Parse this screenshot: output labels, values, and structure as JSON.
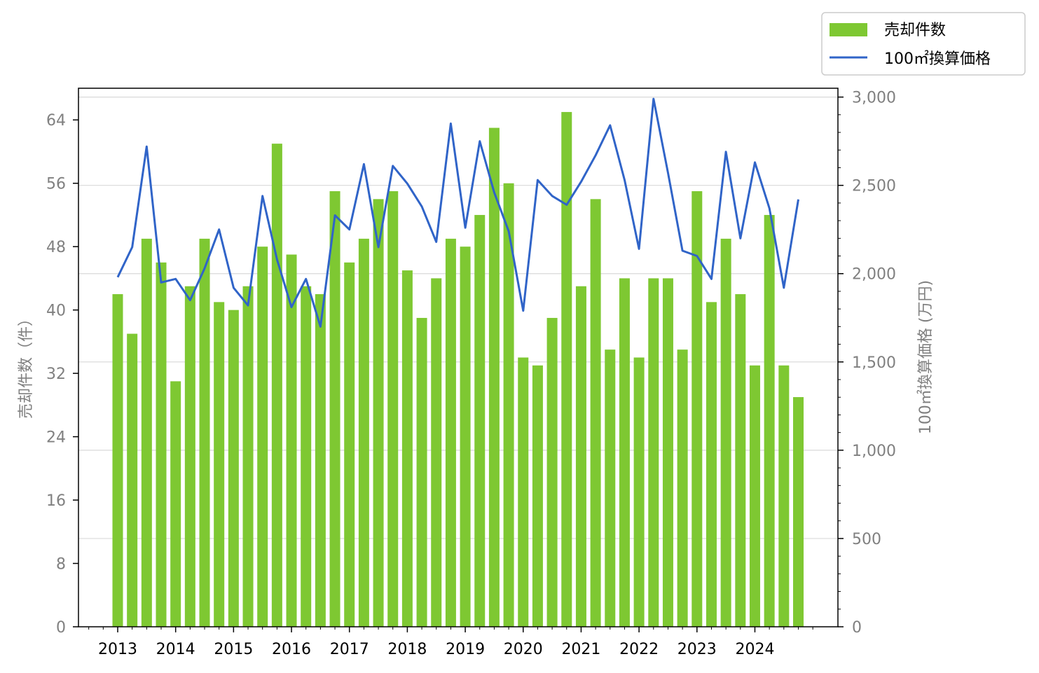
{
  "chart_data": {
    "type": "bar",
    "x_tick_labels": [
      "2013",
      "2014",
      "2015",
      "2016",
      "2017",
      "2018",
      "2019",
      "2020",
      "2021",
      "2022",
      "2023",
      "2024"
    ],
    "ylabel_left": "売却件数（件）",
    "ylabel_right": "100㎡換算価格 (万円)",
    "ylim_left": [
      0,
      68
    ],
    "ylim_right": [
      0,
      3050
    ],
    "yticks_left": [
      "0",
      "8",
      "16",
      "24",
      "32",
      "40",
      "48",
      "56",
      "64"
    ],
    "yticks_right": [
      "0",
      "500",
      "1,000",
      "1,500",
      "2,000",
      "2,500",
      "3,000"
    ],
    "grid": "horizontal (right axis)",
    "legend_position": "top-right, outside plot",
    "series": [
      {
        "name": "売却件数",
        "type": "bar",
        "axis": "left",
        "color": "#7ec832",
        "values": [
          42,
          37,
          49,
          46,
          31,
          43,
          49,
          41,
          40,
          43,
          48,
          61,
          47,
          43,
          42,
          55,
          46,
          49,
          54,
          55,
          45,
          39,
          44,
          49,
          48,
          52,
          63,
          56,
          34,
          33,
          39,
          65,
          43,
          54,
          35,
          44,
          34,
          44,
          44,
          35,
          55,
          41,
          49,
          42,
          33,
          52,
          33,
          29
        ]
      },
      {
        "name": "100㎡換算価格",
        "type": "line",
        "axis": "right",
        "color": "#3064c8",
        "values": [
          1980,
          2150,
          2720,
          1950,
          1970,
          1850,
          2030,
          2250,
          1920,
          1820,
          2440,
          2080,
          1810,
          1970,
          1700,
          2330,
          2250,
          2620,
          2150,
          2610,
          2510,
          2380,
          2180,
          2850,
          2260,
          2750,
          2460,
          2240,
          1790,
          2530,
          2440,
          2390,
          2520,
          2670,
          2840,
          2530,
          2140,
          2990,
          2570,
          2130,
          2100,
          1970,
          2690,
          2200,
          2630,
          2370,
          1920,
          2420
        ]
      }
    ]
  }
}
